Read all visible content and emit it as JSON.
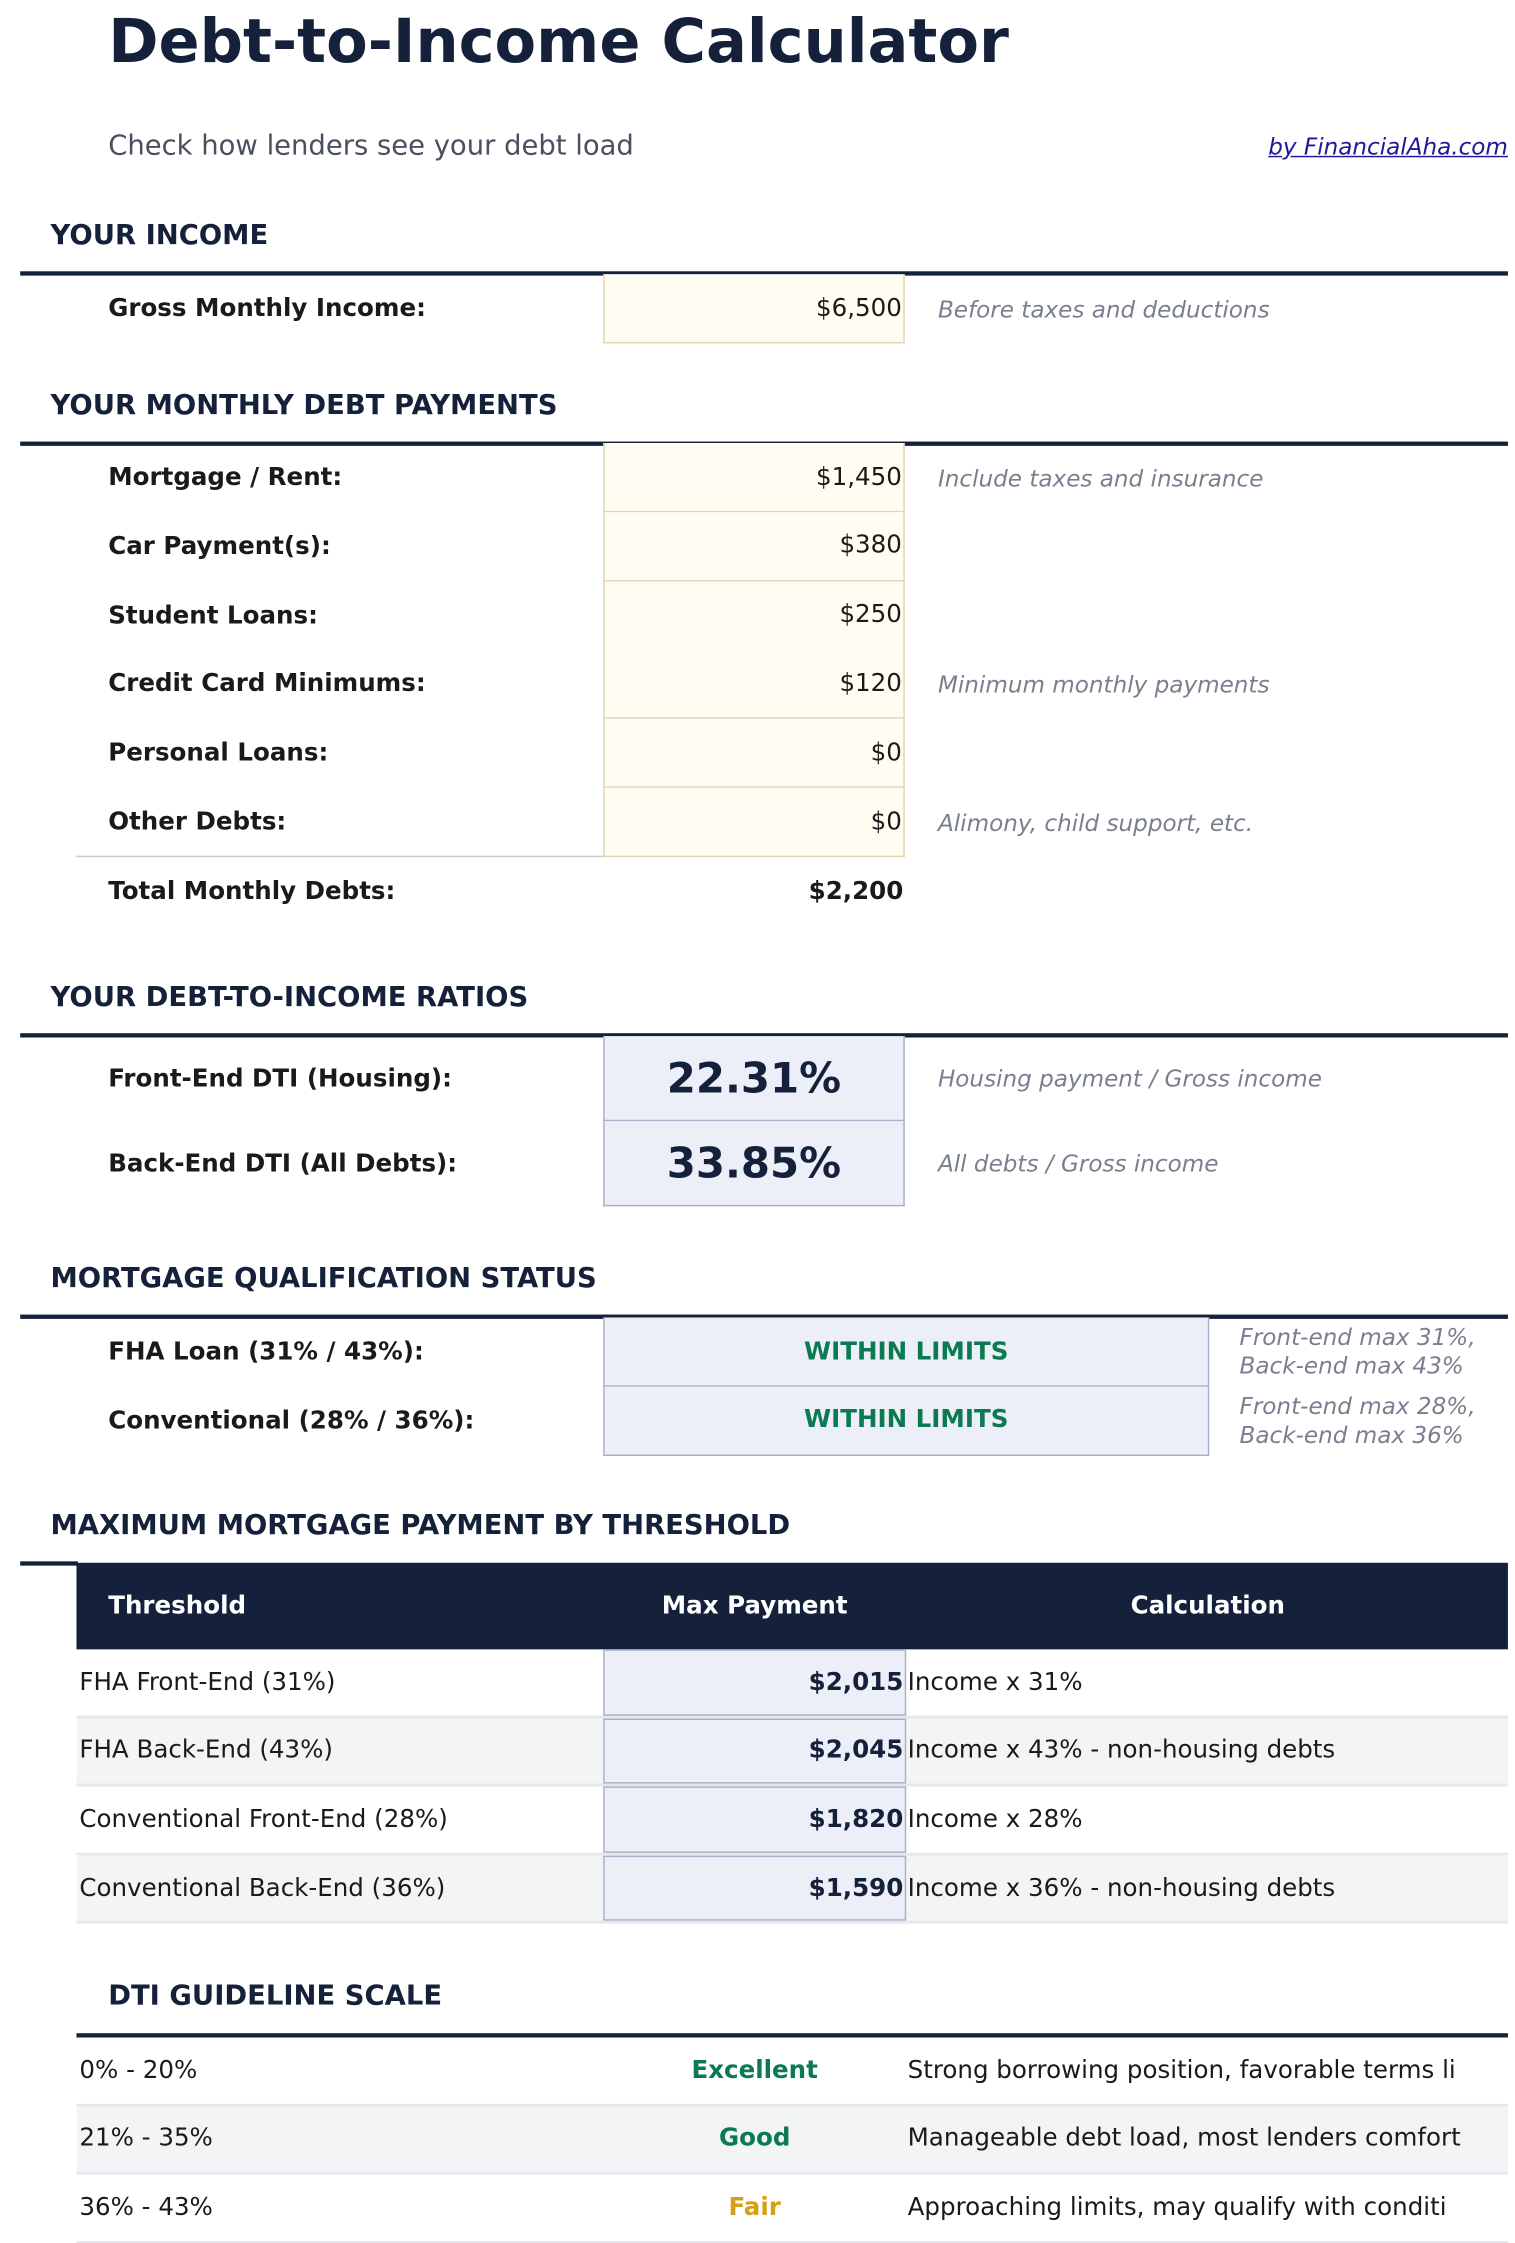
{
  "header": {
    "title": "Debt-to-Income Calculator",
    "subtitle": "Check how lenders see your debt load",
    "byline": "by FinancialAha.com"
  },
  "income": {
    "section_title": "YOUR INCOME",
    "gross_label": "Gross Monthly Income:",
    "gross_value": "$6,500",
    "gross_note": "Before taxes and deductions"
  },
  "debts": {
    "section_title": "YOUR MONTHLY DEBT PAYMENTS",
    "items": [
      {
        "label": "Mortgage / Rent:",
        "value": "$1,450",
        "note": "Include taxes and insurance"
      },
      {
        "label": "Car Payment(s):",
        "value": "$380",
        "note": ""
      },
      {
        "label": "Student Loans:",
        "value": "$250",
        "note": ""
      },
      {
        "label": "Credit Card Minimums:",
        "value": "$120",
        "note": "Minimum monthly payments"
      },
      {
        "label": "Personal Loans:",
        "value": "$0",
        "note": ""
      },
      {
        "label": "Other Debts:",
        "value": "$0",
        "note": "Alimony, child support, etc."
      }
    ],
    "total_label": "Total Monthly Debts:",
    "total_value": "$2,200"
  },
  "ratios": {
    "section_title": "YOUR DEBT-TO-INCOME RATIOS",
    "front_label": "Front-End DTI (Housing):",
    "front_value": "22.31%",
    "front_note": "Housing payment / Gross income",
    "back_label": "Back-End DTI (All Debts):",
    "back_value": "33.85%",
    "back_note": "All debts / Gross income"
  },
  "qualification": {
    "section_title": "MORTGAGE QUALIFICATION STATUS",
    "items": [
      {
        "label": "FHA Loan (31% / 43%):",
        "status": "WITHIN LIMITS",
        "note1": "Front-end max 31%,",
        "note2": "Back-end max 43%"
      },
      {
        "label": "Conventional (28% / 36%):",
        "status": "WITHIN LIMITS",
        "note1": "Front-end max 28%,",
        "note2": "Back-end max 36%"
      }
    ],
    "status_color": "#0a7a50"
  },
  "max_payment": {
    "section_title": "MAXIMUM MORTGAGE PAYMENT BY THRESHOLD",
    "columns": [
      "Threshold",
      "Max Payment",
      "Calculation"
    ],
    "rows": [
      {
        "threshold": "FHA Front-End (31%)",
        "payment": "$2,015",
        "calc": "Income x 31%"
      },
      {
        "threshold": "FHA Back-End (43%)",
        "payment": "$2,045",
        "calc": "Income x 43% - non-housing debts"
      },
      {
        "threshold": "Conventional Front-End (28%)",
        "payment": "$1,820",
        "calc": "Income x 28%"
      },
      {
        "threshold": "Conventional Back-End (36%)",
        "payment": "$1,590",
        "calc": "Income x 36% - non-housing debts"
      }
    ]
  },
  "scale": {
    "section_title": "DTI GUIDELINE SCALE",
    "rows": [
      {
        "range": "0% - 20%",
        "rating": "Excellent",
        "color": "#0a7a50",
        "desc": "Strong borrowing position, favorable terms li"
      },
      {
        "range": "21% - 35%",
        "rating": "Good",
        "color": "#0a7a50",
        "desc": "Manageable debt load, most lenders comfort"
      },
      {
        "range": "36% - 43%",
        "rating": "Fair",
        "color": "#d4a017",
        "desc": "Approaching limits, may qualify with conditi"
      }
    ]
  },
  "colors": {
    "navy": "#15213b",
    "input_bg": "#fffcf2",
    "result_bg": "#eceff7"
  }
}
